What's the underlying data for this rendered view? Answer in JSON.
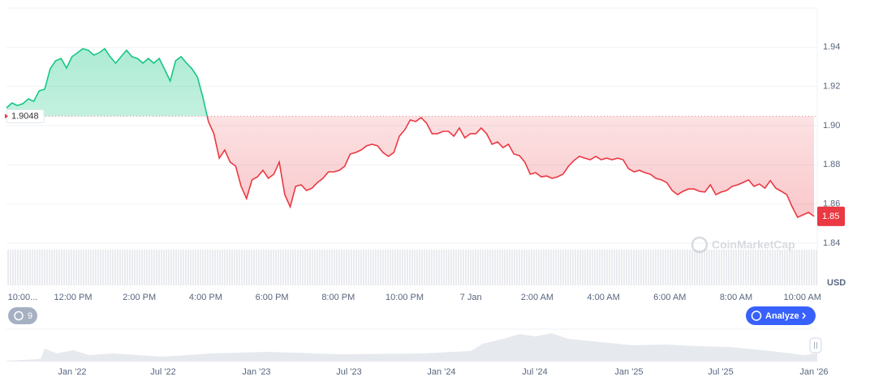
{
  "chart_data": {
    "type": "line",
    "currency": "USD",
    "ylim": [
      1.84,
      1.96
    ],
    "yticks": [
      1.84,
      1.86,
      1.88,
      {
        "value": 1.9,
        "label": "1.90"
      },
      1.92,
      1.94
    ],
    "baseline": 1.9048,
    "current_price_label": "1.85",
    "up_color": "#16c784",
    "down_color": "#ea3943",
    "grid": true,
    "x_labels": [
      "10:00...",
      "12:00 PM",
      "2:00 PM",
      "4:00 PM",
      "6:00 PM",
      "8:00 PM",
      "10:00 PM",
      "7 Jan",
      "2:00 AM",
      "4:00 AM",
      "6:00 AM",
      "8:00 AM",
      "10:00 AM"
    ],
    "values": [
      1.9091,
      1.9116,
      1.9103,
      1.9112,
      1.9137,
      1.9124,
      1.9178,
      1.9186,
      1.929,
      1.9331,
      1.9343,
      1.9294,
      1.9352,
      1.9372,
      1.9393,
      1.9385,
      1.936,
      1.9372,
      1.9393,
      1.9352,
      1.9319,
      1.9352,
      1.9385,
      1.9352,
      1.9343,
      1.9319,
      1.9343,
      1.9319,
      1.9343,
      1.9286,
      1.9228,
      1.9331,
      1.9352,
      1.9319,
      1.929,
      1.9248,
      1.9145,
      1.9021,
      1.8959,
      1.8834,
      1.8876,
      1.8814,
      1.8793,
      1.869,
      1.8628,
      1.8723,
      1.8739,
      1.8772,
      1.8731,
      1.8752,
      1.8814,
      1.8648,
      1.8586,
      1.869,
      1.8698,
      1.8669,
      1.8681,
      1.871,
      1.8731,
      1.8764,
      1.8764,
      1.8772,
      1.8793,
      1.8855,
      1.8863,
      1.8876,
      1.8897,
      1.8905,
      1.8897,
      1.8863,
      1.8843,
      1.8863,
      1.8946,
      1.8979,
      1.9029,
      1.9021,
      1.9041,
      1.9012,
      1.8959,
      1.8959,
      1.8971,
      1.8971,
      1.8946,
      1.8988,
      1.8938,
      1.8959,
      1.8959,
      1.8988,
      1.8959,
      1.8905,
      1.8917,
      1.8888,
      1.8905,
      1.8855,
      1.8847,
      1.8814,
      1.8752,
      1.876,
      1.8739,
      1.8743,
      1.8731,
      1.8739,
      1.8752,
      1.8793,
      1.8822,
      1.8843,
      1.8834,
      1.8826,
      1.8843,
      1.8826,
      1.8834,
      1.8826,
      1.8834,
      1.8826,
      1.8781,
      1.8764,
      1.8772,
      1.876,
      1.8752,
      1.8731,
      1.8723,
      1.871,
      1.8669,
      1.8648,
      1.8665,
      1.8677,
      1.8677,
      1.8665,
      1.8661,
      1.8698,
      1.8648,
      1.8661,
      1.8669,
      1.869,
      1.8698,
      1.871,
      1.8723,
      1.869,
      1.8702,
      1.8681,
      1.8719,
      1.8681,
      1.8665,
      1.8648,
      1.8586,
      1.8532,
      1.8545,
      1.8557,
      1.8537
    ],
    "watermark": "CoinMarketCap",
    "range_labels": [
      "Jan '22",
      "Jul '22",
      "Jan '23",
      "Jul '23",
      "Jan '24",
      "Jul '24",
      "Jan '25",
      "Jul '25",
      "Jan '26"
    ]
  },
  "controls": {
    "history_count": 9,
    "analyze": "Analyze"
  }
}
